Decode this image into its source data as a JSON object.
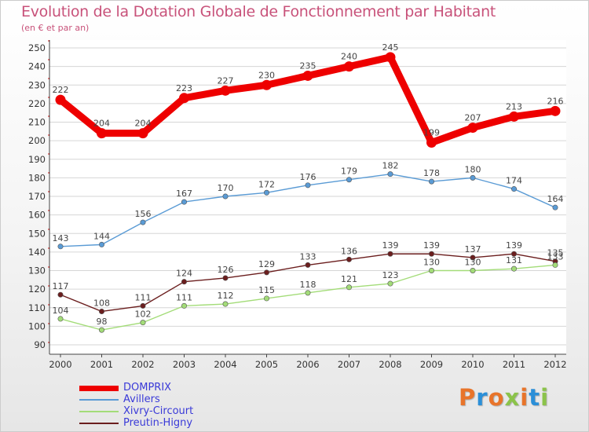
{
  "title": "Evolution de la Dotation Globale de Fonctionnement par Habitant",
  "subtitle": "(en € et par an)",
  "chart_data": {
    "type": "line",
    "x": [
      "2000",
      "2001",
      "2002",
      "2003",
      "2004",
      "2005",
      "2006",
      "2007",
      "2008",
      "2009",
      "2010",
      "2011",
      "2012"
    ],
    "ylim": [
      90,
      250
    ],
    "yticks": [
      90,
      100,
      110,
      120,
      130,
      140,
      150,
      160,
      170,
      180,
      190,
      200,
      210,
      220,
      230,
      240,
      250
    ],
    "grid": "horizontal",
    "legend_position": "bottom-left",
    "series": [
      {
        "name": "DOMPRIX",
        "color": "#ee0000",
        "values": [
          222,
          204,
          204,
          223,
          227,
          230,
          235,
          240,
          245,
          199,
          207,
          213,
          216
        ]
      },
      {
        "name": "Avillers",
        "color": "#5a9bd5",
        "values": [
          143,
          144,
          156,
          167,
          170,
          172,
          176,
          179,
          182,
          178,
          180,
          174,
          164
        ]
      },
      {
        "name": "Xivry-Circourt",
        "color": "#a3dc78",
        "values": [
          104,
          98,
          102,
          111,
          112,
          115,
          118,
          121,
          123,
          130,
          130,
          131,
          133
        ]
      },
      {
        "name": "Preutin-Higny",
        "color": "#6b1e1e",
        "values": [
          117,
          108,
          111,
          124,
          126,
          129,
          133,
          136,
          139,
          139,
          137,
          139,
          135
        ]
      }
    ]
  },
  "logo": {
    "text": "Proxiti",
    "colors": [
      "#e8742a",
      "#2b8fd8",
      "#e8742a",
      "#8bc34a",
      "#e8742a",
      "#2b8fd8",
      "#8bc34a"
    ]
  }
}
